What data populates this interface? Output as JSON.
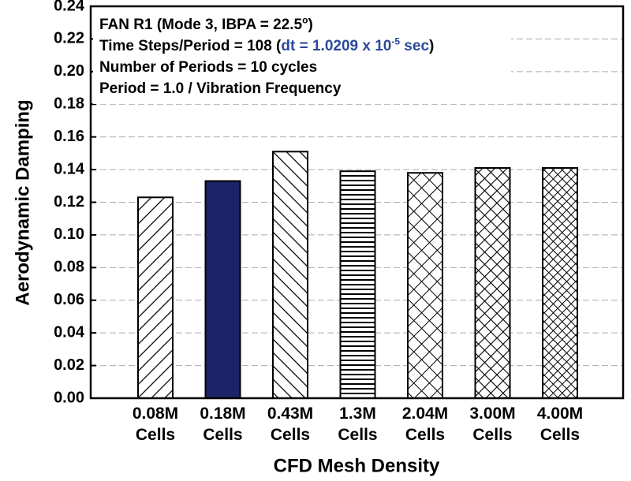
{
  "chart_data": {
    "type": "bar",
    "x_label": "CFD Mesh Density",
    "y_label": "Aerodynamic Damping",
    "annotation_lines": [
      [
        "FAN R1 (Mode 3, IBPA = 22.5",
        "o",
        ")"
      ],
      [
        "Time Steps/Period = 108 (",
        "dt = 1.0209 x 10",
        "-5",
        " sec",
        ")"
      ],
      [
        "Number of Periods = 10 cycles"
      ],
      [
        "Period = 1.0 / Vibration Frequency"
      ]
    ],
    "categories": [
      "0.08M\nCells",
      "0.18M\nCells",
      "0.43M\nCells",
      "1.3M\nCells",
      "2.04M\nCells",
      "3.00M\nCells",
      "4.00M\nCells"
    ],
    "values": [
      0.123,
      0.133,
      0.151,
      0.139,
      0.138,
      0.141,
      0.141
    ],
    "ylim": [
      0,
      0.24
    ],
    "yticks": [
      {
        "value": 0,
        "label": "0.00"
      },
      0.02,
      0.04,
      0.06,
      0.08,
      {
        "value": 0.1,
        "label": "0.10"
      },
      0.12,
      0.14,
      0.16,
      0.18,
      {
        "value": 0.2,
        "label": "0.20"
      },
      0.22,
      0.24
    ],
    "grid": true
  }
}
